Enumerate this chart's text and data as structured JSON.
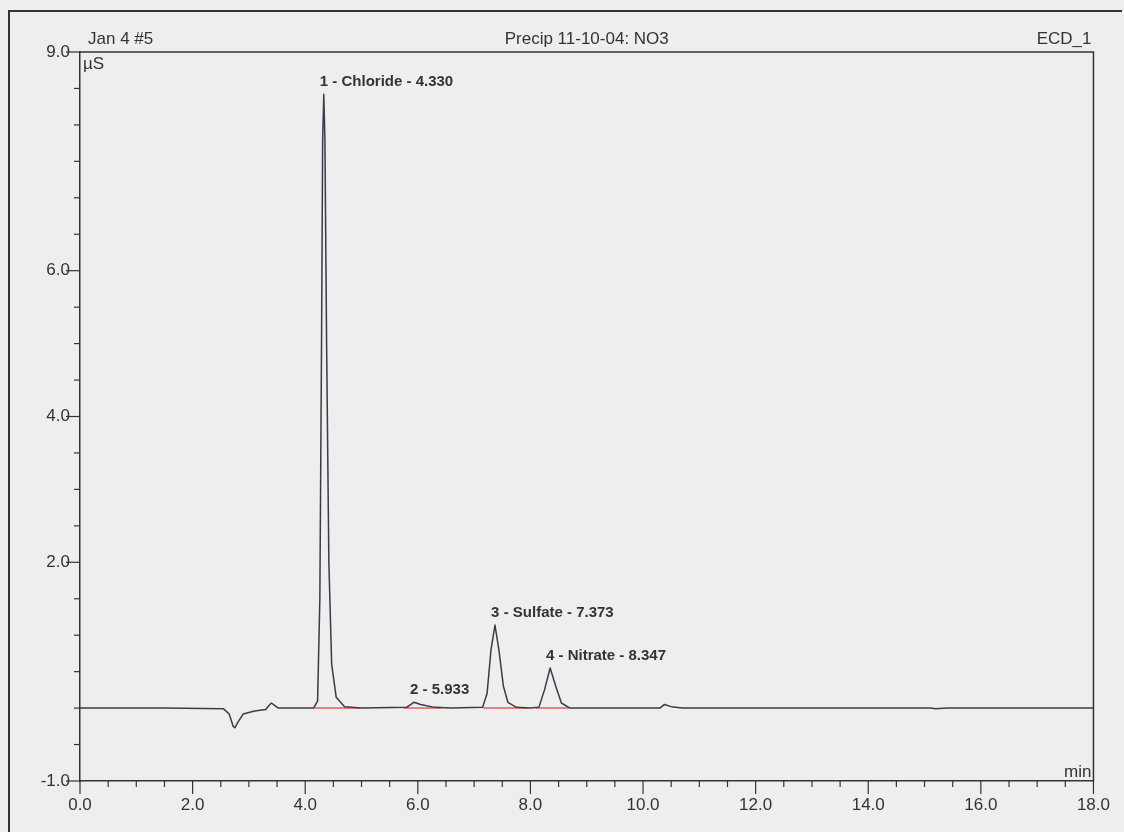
{
  "chart_data": {
    "type": "line",
    "title": "Precip 11-10-04: NO3",
    "xlabel": "min",
    "ylabel": "µS",
    "annotations": [
      "Jan 4 #5",
      "ECD_1",
      {
        "text": "1 - Chloride - 4.330",
        "x": 4.33,
        "y": 8.42
      },
      {
        "text": "2 - 5.933",
        "x": 5.933,
        "y": 0.08
      },
      {
        "text": "3 - Sulfate - 7.373",
        "x": 7.373,
        "y": 1.14
      },
      {
        "text": "4 - Nitrate - 8.347",
        "x": 8.347,
        "y": 0.55
      }
    ],
    "series": [
      {
        "color": "#3a3a48",
        "x": [
          0,
          1.5,
          2.55,
          2.65,
          2.72,
          2.75,
          2.8,
          2.9,
          3.1,
          3.3,
          3.36,
          3.4,
          3.45,
          3.52,
          4.15,
          4.22,
          4.26,
          4.29,
          4.31,
          4.33,
          4.35,
          4.38,
          4.42,
          4.47,
          4.55,
          4.7,
          5.0,
          5.8,
          5.93,
          6.05,
          6.3,
          6.6,
          7.15,
          7.23,
          7.3,
          7.37,
          7.44,
          7.52,
          7.6,
          7.75,
          8.0,
          8.15,
          8.25,
          8.35,
          8.45,
          8.55,
          8.7,
          10.3,
          10.38,
          10.5,
          10.7,
          15.1,
          15.2,
          15.4,
          18
        ],
        "values": [
          0,
          0,
          -0.01,
          -0.08,
          -0.25,
          -0.27,
          -0.2,
          -0.08,
          -0.04,
          -0.02,
          0.04,
          0.07,
          0.04,
          0,
          0,
          0.1,
          1.5,
          5,
          7.8,
          8.42,
          7.8,
          5,
          2,
          0.6,
          0.15,
          0.02,
          0,
          0.01,
          0.08,
          0.05,
          0.01,
          0,
          0.01,
          0.2,
          0.8,
          1.14,
          0.8,
          0.3,
          0.08,
          0.01,
          0,
          0.01,
          0.25,
          0.55,
          0.3,
          0.07,
          0,
          0,
          0.05,
          0.02,
          0,
          0,
          -0.01,
          0,
          0
        ]
      },
      {
        "color": "#e06060",
        "x": [
          4.17,
          4.97
        ],
        "values": [
          0,
          0
        ]
      },
      {
        "color": "#e06060",
        "x": [
          5.76,
          6.41
        ],
        "values": [
          0,
          0
        ]
      },
      {
        "color": "#e06060",
        "x": [
          7.17,
          7.93
        ],
        "values": [
          0,
          0
        ]
      },
      {
        "color": "#e06060",
        "x": [
          8.11,
          8.67
        ],
        "values": [
          0,
          0
        ]
      }
    ],
    "xlim": [
      0,
      18
    ],
    "xticks": [
      {
        "value": 0,
        "label": "0.0"
      },
      {
        "value": 0.5,
        "label": null
      },
      {
        "value": 1,
        "label": null
      },
      {
        "value": 1.5,
        "label": null
      },
      {
        "value": 2,
        "label": "2.0"
      },
      {
        "value": 2.5,
        "label": null
      },
      {
        "value": 3,
        "label": null
      },
      {
        "value": 3.5,
        "label": null
      },
      {
        "value": 4,
        "label": "4.0"
      },
      {
        "value": 4.5,
        "label": null
      },
      {
        "value": 5,
        "label": null
      },
      {
        "value": 5.5,
        "label": null
      },
      {
        "value": 6,
        "label": "6.0"
      },
      {
        "value": 6.5,
        "label": null
      },
      {
        "value": 7,
        "label": null
      },
      {
        "value": 7.5,
        "label": null
      },
      {
        "value": 8,
        "label": "8.0"
      },
      {
        "value": 8.5,
        "label": null
      },
      {
        "value": 9,
        "label": null
      },
      {
        "value": 9.5,
        "label": null
      },
      {
        "value": 10,
        "label": "10.0"
      },
      {
        "value": 10.5,
        "label": null
      },
      {
        "value": 11,
        "label": null
      },
      {
        "value": 11.5,
        "label": null
      },
      {
        "value": 12,
        "label": "12.0"
      },
      {
        "value": 12.5,
        "label": null
      },
      {
        "value": 13,
        "label": null
      },
      {
        "value": 13.5,
        "label": null
      },
      {
        "value": 14,
        "label": "14.0"
      },
      {
        "value": 14.5,
        "label": null
      },
      {
        "value": 15,
        "label": null
      },
      {
        "value": 15.5,
        "label": null
      },
      {
        "value": 16,
        "label": "16.0"
      },
      {
        "value": 16.5,
        "label": null
      },
      {
        "value": 17,
        "label": null
      },
      {
        "value": 17.5,
        "label": null
      },
      {
        "value": 18,
        "label": "18.0"
      }
    ],
    "ylim": [
      -1,
      9
    ],
    "yticks": [
      {
        "value": -1,
        "label": "-1.0"
      },
      {
        "value": -0.5,
        "label": null
      },
      {
        "value": 0,
        "label": null
      },
      {
        "value": 0.5,
        "label": null
      },
      {
        "value": 1,
        "label": null
      },
      {
        "value": 1.5,
        "label": null
      },
      {
        "value": 2,
        "label": "2.0"
      },
      {
        "value": 2.5,
        "label": null
      },
      {
        "value": 3,
        "label": null
      },
      {
        "value": 3.5,
        "label": null
      },
      {
        "value": 4,
        "label": "4.0"
      },
      {
        "value": 4.5,
        "label": null
      },
      {
        "value": 5,
        "label": null
      },
      {
        "value": 5.5,
        "label": null
      },
      {
        "value": 6,
        "label": "6.0"
      },
      {
        "value": 6.5,
        "label": null
      },
      {
        "value": 7,
        "label": null
      },
      {
        "value": 7.5,
        "label": null
      },
      {
        "value": 8,
        "label": null
      },
      {
        "value": 8.5,
        "label": null
      },
      {
        "value": 9,
        "label": "9.0"
      }
    ],
    "grid": false,
    "legend": false,
    "marker": "none",
    "line_style": "solid"
  }
}
